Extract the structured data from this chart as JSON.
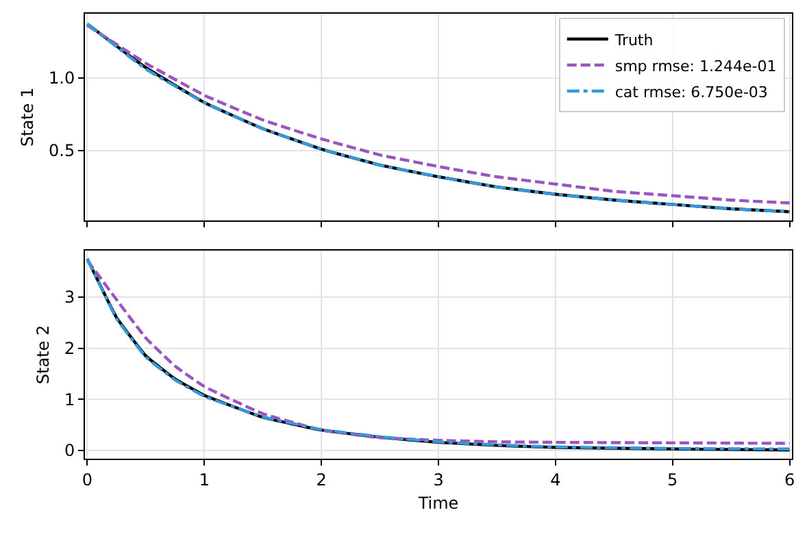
{
  "chart_data": [
    {
      "type": "line",
      "ylabel": "State 1",
      "x": [
        0,
        0.5,
        1,
        1.5,
        2,
        2.5,
        3,
        3.5,
        4,
        4.5,
        5,
        5.5,
        6
      ],
      "xlim": [
        -0.02,
        6.02
      ],
      "xticks": [
        {
          "value": 0,
          "label": null
        },
        {
          "value": 1,
          "label": null
        },
        {
          "value": 2,
          "label": null
        },
        {
          "value": 3,
          "label": null
        },
        {
          "value": 4,
          "label": null
        },
        {
          "value": 5,
          "label": null
        },
        {
          "value": 6,
          "label": null
        }
      ],
      "ylim": [
        0.02,
        1.44
      ],
      "yticks": [
        0.5,
        {
          "value": 1,
          "label": "1.0"
        }
      ],
      "grid": true,
      "legend": "top right",
      "tick_labels": "y",
      "series": [
        {
          "name": "Truth",
          "color": "#000000",
          "line_style": "solid",
          "values": [
            1.37,
            1.07,
            0.83,
            0.65,
            0.51,
            0.4,
            0.32,
            0.25,
            0.2,
            0.16,
            0.13,
            0.1,
            0.08
          ]
        },
        {
          "name": "smp rmse: 1.244e-01",
          "color": "#9b55c0",
          "line_style": "dashed",
          "values": [
            1.36,
            1.1,
            0.88,
            0.71,
            0.58,
            0.47,
            0.39,
            0.32,
            0.27,
            0.22,
            0.19,
            0.16,
            0.14
          ]
        },
        {
          "name": "cat rmse: 6.750e-03",
          "color": "#3498db",
          "line_style": "dashdot",
          "values": [
            1.37,
            1.06,
            0.83,
            0.65,
            0.51,
            0.4,
            0.32,
            0.25,
            0.2,
            0.16,
            0.13,
            0.1,
            0.08
          ]
        }
      ]
    },
    {
      "type": "line",
      "xlabel": "Time",
      "ylabel": "State 2",
      "x": [
        0,
        0.25,
        0.5,
        0.75,
        1,
        1.5,
        2,
        2.5,
        3,
        3.5,
        4,
        5,
        6
      ],
      "xlim": [
        -0.02,
        6.02
      ],
      "xticks": [
        0,
        1,
        2,
        3,
        4,
        5,
        6
      ],
      "ylim": [
        -0.16,
        3.91
      ],
      "yticks": [
        0,
        1,
        2,
        3
      ],
      "grid": true,
      "series": [
        {
          "color": "#000000",
          "line_style": "solid",
          "values": [
            3.75,
            2.6,
            1.85,
            1.4,
            1.08,
            0.65,
            0.4,
            0.26,
            0.16,
            0.1,
            0.06,
            0.03,
            0.01
          ]
        },
        {
          "color": "#9b55c0",
          "line_style": "dashed",
          "values": [
            3.72,
            2.95,
            2.2,
            1.65,
            1.25,
            0.72,
            0.4,
            0.25,
            0.2,
            0.17,
            0.16,
            0.15,
            0.14
          ]
        },
        {
          "color": "#3498db",
          "line_style": "dashdot",
          "values": [
            3.75,
            2.58,
            1.83,
            1.38,
            1.06,
            0.66,
            0.41,
            0.27,
            0.17,
            0.11,
            0.07,
            0.04,
            0.03
          ]
        }
      ]
    }
  ]
}
